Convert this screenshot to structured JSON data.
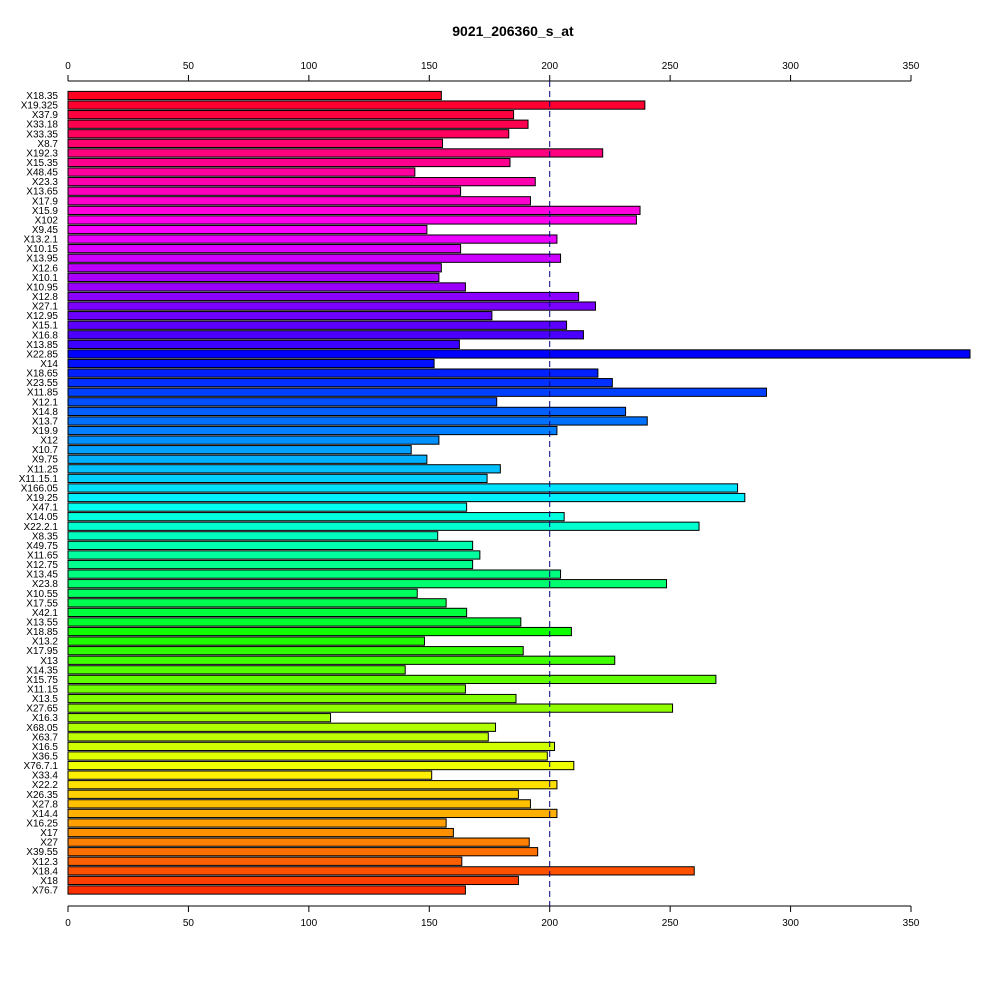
{
  "chart_data": {
    "type": "bar",
    "orientation": "horizontal",
    "title": "9021_206360_s_at",
    "xlabel": "",
    "ylabel": "",
    "xlim": [
      0,
      350
    ],
    "xticks": [
      0,
      50,
      100,
      150,
      200,
      250,
      300,
      350
    ],
    "axes": [
      "top",
      "bottom"
    ],
    "reference_line": 200,
    "categories": [
      "X18.35",
      "X19.325",
      "X37.9",
      "X33.18",
      "X33.35",
      "X8.7",
      "X192.3",
      "X15.35",
      "X48.45",
      "X23.3",
      "X13.65",
      "X17.9",
      "X15.9",
      "X102",
      "X9.45",
      "X13.2.1",
      "X10.15",
      "X13.95",
      "X12.6",
      "X10.1",
      "X10.95",
      "X12.8",
      "X27.1",
      "X12.95",
      "X15.1",
      "X16.8",
      "X13.85",
      "X22.85",
      "X14",
      "X18.65",
      "X23.55",
      "X11.85",
      "X12.1",
      "X14.8",
      "X13.7",
      "X19.9",
      "X12",
      "X10.7",
      "X9.75",
      "X11.25",
      "X11.15.1",
      "X166.05",
      "X19.25",
      "X47.1",
      "X14.05",
      "X22.2.1",
      "X8.35",
      "X49.75",
      "X11.65",
      "X12.75",
      "X13.45",
      "X23.8",
      "X10.55",
      "X17.55",
      "X42.1",
      "X13.55",
      "X18.85",
      "X13.2",
      "X17.95",
      "X13",
      "X14.35",
      "X15.75",
      "X11.15",
      "X13.5",
      "X27.65",
      "X16.3",
      "X68.05",
      "X63.7",
      "X16.5",
      "X36.5",
      "X76.7.1",
      "X33.4",
      "X22.2",
      "X26.35",
      "X27.8",
      "X14.4",
      "X16.25",
      "X17",
      "X27",
      "X39.55",
      "X12.3",
      "X18.4",
      "X18",
      "X76.7"
    ],
    "values": [
      155,
      239.5,
      185,
      191,
      183,
      155.5,
      222,
      183.5,
      144,
      194,
      163,
      192,
      237.5,
      236,
      149,
      203,
      163,
      204.5,
      155,
      154,
      165,
      212,
      219,
      176,
      207,
      214,
      162.5,
      375,
      152,
      220,
      226,
      290,
      178,
      231.5,
      240.5,
      203,
      154,
      142.5,
      149,
      179.5,
      174,
      278,
      281,
      165.5,
      206,
      262,
      153.5,
      168,
      171,
      168,
      204.5,
      248.5,
      145,
      157,
      165.5,
      188,
      209,
      148,
      189,
      227,
      140,
      269,
      165,
      186,
      251,
      109,
      177.5,
      174.5,
      202,
      199,
      210,
      151,
      203,
      187,
      192,
      203,
      157,
      160,
      191.5,
      195,
      163.5,
      260,
      187,
      165
    ],
    "colors": [
      "#FF0020",
      "#FF0030",
      "#FF003F",
      "#FF004F",
      "#FF005F",
      "#FF006F",
      "#FF007F",
      "#FF008E",
      "#FF009E",
      "#FF00AE",
      "#FF00BE",
      "#FF00CE",
      "#FF00DE",
      "#FF00EE",
      "#FB00FF",
      "#EB00FF",
      "#DB00FF",
      "#CB00FF",
      "#BB00FF",
      "#AB00FF",
      "#9B00FF",
      "#8B00FF",
      "#7B00FF",
      "#6B00FF",
      "#5B00FF",
      "#4B00FF",
      "#3B00FF",
      "#0000FF",
      "#0010FF",
      "#0020FF",
      "#0030FF",
      "#0040FF",
      "#0050FF",
      "#0060FF",
      "#0070FF",
      "#0080FF",
      "#0090FF",
      "#00A0FF",
      "#00B0FF",
      "#00C0FF",
      "#00D0FF",
      "#00E0FF",
      "#00F0FF",
      "#00FFEF",
      "#00FFDF",
      "#00FFCF",
      "#00FFBF",
      "#00FFAF",
      "#00FF9F",
      "#00FF8F",
      "#00FF7F",
      "#00FF6F",
      "#00FF5F",
      "#00FF4F",
      "#00FF3F",
      "#00FF2F",
      "#10FF00",
      "#20FF00",
      "#30FF00",
      "#40FF00",
      "#50FF00",
      "#60FF00",
      "#70FF00",
      "#80FF00",
      "#90FF00",
      "#A0FF00",
      "#B0FF00",
      "#C0FF00",
      "#D0FF00",
      "#E0FF00",
      "#F0FF00",
      "#FFF000",
      "#FFE000",
      "#FFD000",
      "#FFC000",
      "#FFB000",
      "#FFA000",
      "#FF9000",
      "#FF8000",
      "#FF7000",
      "#FF6000",
      "#FF5000",
      "#FF4000",
      "#FF3000"
    ]
  }
}
